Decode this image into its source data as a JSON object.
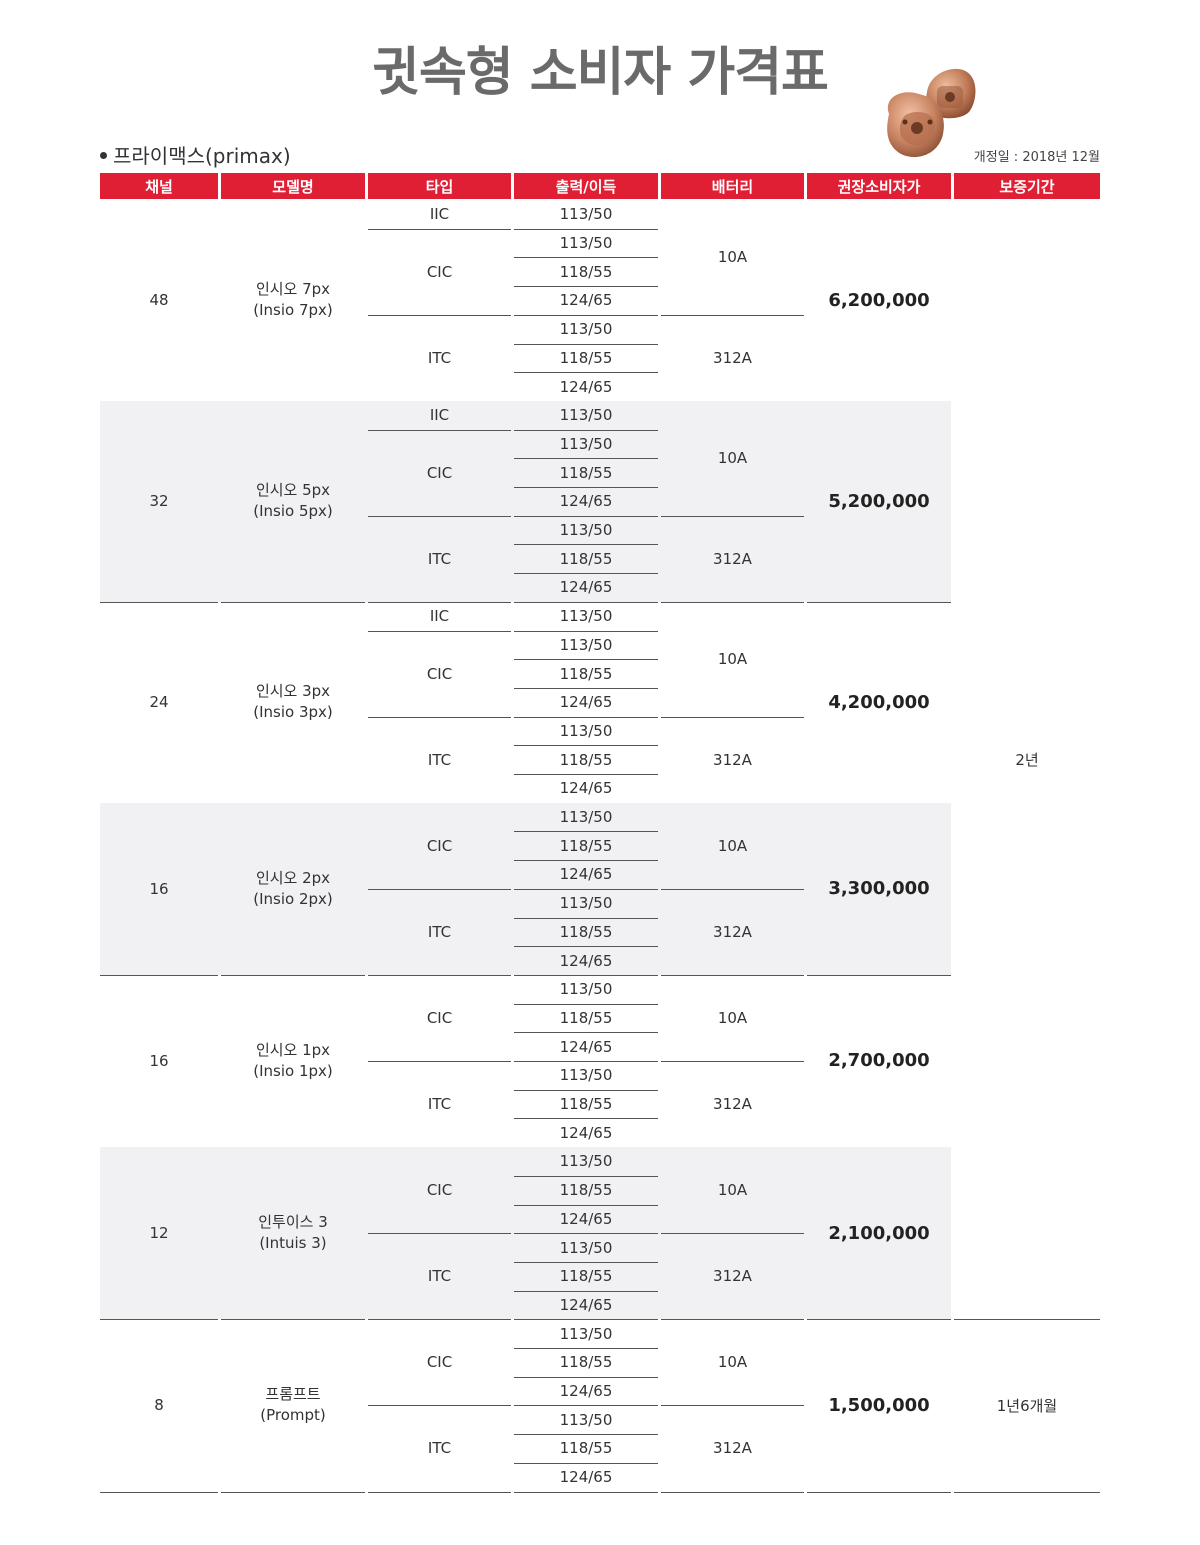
{
  "page": {
    "title": "귓속형 소비자 가격표",
    "subtitle": "프라이맥스(primax)",
    "revision_date": "개정일 : 2018년 12월"
  },
  "table": {
    "headers": [
      "채널",
      "모델명",
      "타입",
      "출력/이득",
      "배터리",
      "권장소비자가",
      "보증기간"
    ],
    "models": [
      {
        "channel": "48",
        "model_kr": "인시오 7px",
        "model_en": "(Insio 7px)",
        "price": "6,200,000",
        "types": [
          {
            "type": "IIC",
            "outputs": [
              "113/50"
            ],
            "battery": "10A"
          },
          {
            "type": "CIC",
            "outputs": [
              "113/50",
              "118/55",
              "124/65"
            ],
            "battery": "10A"
          },
          {
            "type": "ITC",
            "outputs": [
              "113/50",
              "118/55",
              "124/65"
            ],
            "battery": "312A"
          }
        ]
      },
      {
        "channel": "32",
        "model_kr": "인시오 5px",
        "model_en": "(Insio 5px)",
        "price": "5,200,000",
        "types": [
          {
            "type": "IIC",
            "outputs": [
              "113/50"
            ],
            "battery": "10A"
          },
          {
            "type": "CIC",
            "outputs": [
              "113/50",
              "118/55",
              "124/65"
            ],
            "battery": "10A"
          },
          {
            "type": "ITC",
            "outputs": [
              "113/50",
              "118/55",
              "124/65"
            ],
            "battery": "312A"
          }
        ]
      },
      {
        "channel": "24",
        "model_kr": "인시오 3px",
        "model_en": "(Insio 3px)",
        "price": "4,200,000",
        "types": [
          {
            "type": "IIC",
            "outputs": [
              "113/50"
            ],
            "battery": "10A"
          },
          {
            "type": "CIC",
            "outputs": [
              "113/50",
              "118/55",
              "124/65"
            ],
            "battery": "10A"
          },
          {
            "type": "ITC",
            "outputs": [
              "113/50",
              "118/55",
              "124/65"
            ],
            "battery": "312A"
          }
        ]
      },
      {
        "channel": "16",
        "model_kr": "인시오 2px",
        "model_en": "(Insio 2px)",
        "price": "3,300,000",
        "types": [
          {
            "type": "CIC",
            "outputs": [
              "113/50",
              "118/55",
              "124/65"
            ],
            "battery": "10A"
          },
          {
            "type": "ITC",
            "outputs": [
              "113/50",
              "118/55",
              "124/65"
            ],
            "battery": "312A"
          }
        ]
      },
      {
        "channel": "16",
        "model_kr": "인시오 1px",
        "model_en": "(Insio 1px)",
        "price": "2,700,000",
        "types": [
          {
            "type": "CIC",
            "outputs": [
              "113/50",
              "118/55",
              "124/65"
            ],
            "battery": "10A"
          },
          {
            "type": "ITC",
            "outputs": [
              "113/50",
              "118/55",
              "124/65"
            ],
            "battery": "312A"
          }
        ]
      },
      {
        "channel": "12",
        "model_kr": "인투이스 3",
        "model_en": "(Intuis 3)",
        "price": "2,100,000",
        "types": [
          {
            "type": "CIC",
            "outputs": [
              "113/50",
              "118/55",
              "124/65"
            ],
            "battery": "10A"
          },
          {
            "type": "ITC",
            "outputs": [
              "113/50",
              "118/55",
              "124/65"
            ],
            "battery": "312A"
          }
        ]
      },
      {
        "channel": "8",
        "model_kr": "프롬프트",
        "model_en": "(Prompt)",
        "price": "1,500,000",
        "types": [
          {
            "type": "CIC",
            "outputs": [
              "113/50",
              "118/55",
              "124/65"
            ],
            "battery": "10A"
          },
          {
            "type": "ITC",
            "outputs": [
              "113/50",
              "118/55",
              "124/65"
            ],
            "battery": "312A"
          }
        ]
      }
    ],
    "warranties": [
      {
        "label": "2년",
        "model_count": 6
      },
      {
        "label": "1년6개월",
        "model_count": 1
      }
    ]
  },
  "colors": {
    "header_bg": "#e01e34",
    "header_text": "#ffffff",
    "shaded_row": "#f1f1f3",
    "title": "#6a6a6a"
  }
}
